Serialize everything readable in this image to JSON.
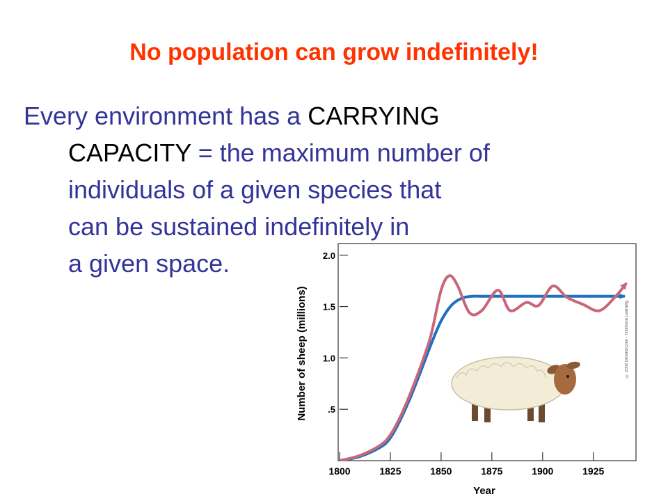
{
  "slide": {
    "title": "No population can grow indefinitely!",
    "line1_a": "Every environment has a ",
    "line1_b": "CARRYING",
    "line2_a": "CAPACITY",
    "line2_b": " = the maximum number of",
    "line3": "individuals of a given species that",
    "line4": "can be sustained indefinitely in",
    "line5": "a given space."
  },
  "colors": {
    "title": "#ff3300",
    "body": "#333399",
    "carrying_line": "#1f6fc0",
    "actual_line": "#c8677a",
    "plot_bg": "#ffffff"
  },
  "chart_data": {
    "type": "line",
    "xlabel": "Year",
    "ylabel": "Number of sheep (millions)",
    "x_ticks": [
      1800,
      1825,
      1850,
      1875,
      1900,
      1925
    ],
    "y_ticks": [
      0.5,
      1.0,
      1.5,
      2.0
    ],
    "y_tick_labels": [
      ".5",
      "1.0",
      "1.5",
      "2.0"
    ],
    "xlim": [
      1800,
      1946
    ],
    "ylim": [
      0,
      2.1
    ],
    "grid": false,
    "credit": "© 2002 Brooks/Cole - Thomson Learning",
    "series": [
      {
        "key": "carrying",
        "x": [
          1800,
          1810,
          1820,
          1825,
          1830,
          1835,
          1840,
          1845,
          1850,
          1855,
          1860,
          1865,
          1870,
          1880,
          1890,
          1900,
          1910,
          1920,
          1930,
          1940
        ],
        "y": [
          0.0,
          0.04,
          0.13,
          0.22,
          0.4,
          0.62,
          0.87,
          1.13,
          1.36,
          1.51,
          1.58,
          1.6,
          1.6,
          1.6,
          1.6,
          1.6,
          1.6,
          1.6,
          1.6,
          1.6
        ]
      },
      {
        "key": "actual",
        "x": [
          1800,
          1810,
          1820,
          1825,
          1830,
          1835,
          1840,
          1845,
          1850,
          1854,
          1858,
          1864,
          1870,
          1878,
          1884,
          1892,
          1898,
          1905,
          1912,
          1920,
          1928,
          1936,
          1941
        ],
        "y": [
          0.0,
          0.05,
          0.15,
          0.25,
          0.43,
          0.66,
          0.92,
          1.22,
          1.66,
          1.8,
          1.71,
          1.44,
          1.46,
          1.66,
          1.46,
          1.54,
          1.51,
          1.7,
          1.59,
          1.52,
          1.46,
          1.6,
          1.72
        ]
      }
    ]
  }
}
